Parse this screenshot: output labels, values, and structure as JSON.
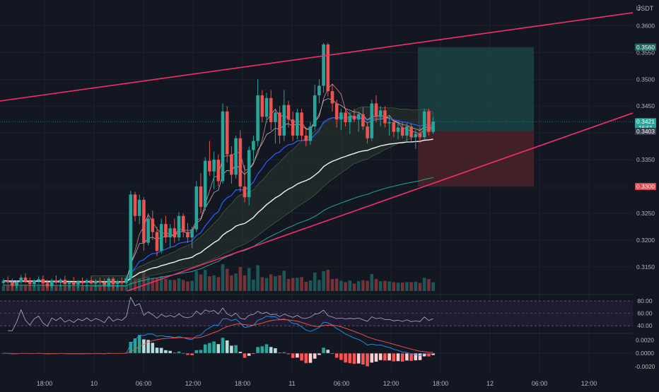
{
  "colors": {
    "background": "#131722",
    "bull": "#26a69a",
    "bear": "#ef5350",
    "trendline": "#f23067",
    "target_zone": "#1f4a48",
    "stop_zone": "#4a2228",
    "ema_fast": "#a1887f",
    "ema_mid": "#2962ff",
    "ema_slow": "#f5f5f5",
    "ema_long": "#26a69a",
    "rsi_line": "#b0b0c0",
    "macd_line": "#2196f3",
    "signal_line": "#ff5252",
    "axis_text": "#b2b5be"
  },
  "price_axis": {
    "unit_label": "USDT",
    "currency_icon": "menu-icon",
    "ticks": [
      "0.3600",
      "0.3550",
      "0.3500",
      "0.3450",
      "0.3350",
      "0.3250",
      "0.3200",
      "0.3150"
    ],
    "badges": [
      {
        "label": "0.3560",
        "kind": "target"
      },
      {
        "label": "0.3421",
        "sub": "16:51",
        "kind": "last"
      },
      {
        "label": "0.3403",
        "kind": "entry"
      },
      {
        "label": "0.3300",
        "kind": "stop"
      }
    ]
  },
  "time_axis": {
    "ticks": [
      "18:00",
      "10",
      "06:00",
      "12:00",
      "18:00",
      "11",
      "06:00",
      "12:00",
      "18:00",
      "12",
      "06:00",
      "12:00"
    ]
  },
  "rsi_panel": {
    "levels": [
      "80.00",
      "60.00",
      "40.00"
    ]
  },
  "macd_panel": {
    "levels": [
      "0.0020",
      "0.0000",
      "-0.0020"
    ]
  },
  "chart_data": [
    {
      "type": "candlestick",
      "x_unit": "time",
      "price_range": [
        0.3105,
        0.3648
      ],
      "candles_hourly_ohlc": [
        [
          0.312,
          0.3128,
          0.3115,
          0.3124
        ],
        [
          0.3124,
          0.3132,
          0.3118,
          0.3121
        ],
        [
          0.3121,
          0.3128,
          0.3112,
          0.3115
        ],
        [
          0.3115,
          0.3125,
          0.311,
          0.3122
        ],
        [
          0.3122,
          0.3135,
          0.3118,
          0.313
        ],
        [
          0.313,
          0.3138,
          0.312,
          0.3123
        ],
        [
          0.3123,
          0.313,
          0.3114,
          0.3118
        ],
        [
          0.3118,
          0.3126,
          0.3112,
          0.3124
        ],
        [
          0.3124,
          0.3132,
          0.3119,
          0.3127
        ],
        [
          0.3127,
          0.3134,
          0.3115,
          0.3119
        ],
        [
          0.3119,
          0.3126,
          0.311,
          0.3114
        ],
        [
          0.3114,
          0.3128,
          0.311,
          0.3125
        ],
        [
          0.3125,
          0.3134,
          0.3118,
          0.3121
        ],
        [
          0.3121,
          0.3129,
          0.3113,
          0.3126
        ],
        [
          0.3126,
          0.3133,
          0.3116,
          0.3118
        ],
        [
          0.3118,
          0.3125,
          0.311,
          0.3122
        ],
        [
          0.3122,
          0.3131,
          0.3115,
          0.3117
        ],
        [
          0.3117,
          0.3125,
          0.311,
          0.3123
        ],
        [
          0.3123,
          0.313,
          0.3116,
          0.312
        ],
        [
          0.312,
          0.3128,
          0.3113,
          0.3125
        ],
        [
          0.3125,
          0.3132,
          0.3118,
          0.3119
        ],
        [
          0.3119,
          0.3127,
          0.3112,
          0.3124
        ],
        [
          0.3124,
          0.313,
          0.3117,
          0.3121
        ],
        [
          0.3121,
          0.3128,
          0.3112,
          0.3116
        ],
        [
          0.3116,
          0.3131,
          0.3112,
          0.3128
        ],
        [
          0.3128,
          0.3131,
          0.311,
          0.3118
        ],
        [
          0.3118,
          0.3126,
          0.3111,
          0.3123
        ],
        [
          0.3123,
          0.313,
          0.3116,
          0.312
        ],
        [
          0.312,
          0.3133,
          0.3117,
          0.3129
        ],
        [
          0.3129,
          0.3292,
          0.3125,
          0.3285
        ],
        [
          0.3285,
          0.329,
          0.3235,
          0.3245
        ],
        [
          0.3245,
          0.3285,
          0.323,
          0.3275
        ],
        [
          0.3275,
          0.328,
          0.318,
          0.3195
        ],
        [
          0.3195,
          0.325,
          0.319,
          0.324
        ],
        [
          0.324,
          0.3255,
          0.32,
          0.3215
        ],
        [
          0.3215,
          0.3225,
          0.317,
          0.318
        ],
        [
          0.318,
          0.324,
          0.3175,
          0.323
        ],
        [
          0.323,
          0.3245,
          0.3195,
          0.3205
        ],
        [
          0.3205,
          0.323,
          0.3185,
          0.3222
        ],
        [
          0.3222,
          0.324,
          0.3195,
          0.3205
        ],
        [
          0.3205,
          0.3252,
          0.3198,
          0.3245
        ],
        [
          0.3245,
          0.325,
          0.3205,
          0.3215
        ],
        [
          0.3215,
          0.3232,
          0.3195,
          0.3205
        ],
        [
          0.3205,
          0.3225,
          0.3185,
          0.322
        ],
        [
          0.322,
          0.331,
          0.3215,
          0.33
        ],
        [
          0.33,
          0.3325,
          0.325,
          0.3262
        ],
        [
          0.3262,
          0.3355,
          0.3255,
          0.3348
        ],
        [
          0.3348,
          0.3385,
          0.332,
          0.3328
        ],
        [
          0.3328,
          0.3365,
          0.3295,
          0.335
        ],
        [
          0.335,
          0.336,
          0.33,
          0.331
        ],
        [
          0.331,
          0.3455,
          0.3305,
          0.344
        ],
        [
          0.344,
          0.345,
          0.3345,
          0.336
        ],
        [
          0.336,
          0.3375,
          0.3305,
          0.3322
        ],
        [
          0.3322,
          0.3395,
          0.3315,
          0.339
        ],
        [
          0.339,
          0.3405,
          0.329,
          0.33
        ],
        [
          0.33,
          0.334,
          0.327,
          0.328
        ],
        [
          0.328,
          0.3375,
          0.3265,
          0.3368
        ],
        [
          0.3368,
          0.3395,
          0.3348,
          0.3385
        ],
        [
          0.3385,
          0.35,
          0.3375,
          0.347
        ],
        [
          0.347,
          0.348,
          0.342,
          0.343
        ],
        [
          0.343,
          0.3475,
          0.342,
          0.3465
        ],
        [
          0.3465,
          0.348,
          0.3405,
          0.342
        ],
        [
          0.342,
          0.3445,
          0.338,
          0.3438
        ],
        [
          0.3438,
          0.345,
          0.338,
          0.3395
        ],
        [
          0.3395,
          0.348,
          0.3385,
          0.3452
        ],
        [
          0.3452,
          0.346,
          0.341,
          0.3425
        ],
        [
          0.3425,
          0.344,
          0.3385,
          0.3395
        ],
        [
          0.3395,
          0.3445,
          0.3388,
          0.3438
        ],
        [
          0.3438,
          0.3445,
          0.3385,
          0.3395
        ],
        [
          0.3395,
          0.341,
          0.3375,
          0.3385
        ],
        [
          0.3385,
          0.342,
          0.3378,
          0.3412
        ],
        [
          0.3412,
          0.349,
          0.3405,
          0.347
        ],
        [
          0.347,
          0.35,
          0.3455,
          0.3488
        ],
        [
          0.3488,
          0.3568,
          0.3475,
          0.3565
        ],
        [
          0.3565,
          0.3568,
          0.3468,
          0.3478
        ],
        [
          0.3478,
          0.349,
          0.344,
          0.3455
        ],
        [
          0.3455,
          0.3462,
          0.341,
          0.3425
        ],
        [
          0.3425,
          0.3445,
          0.3405,
          0.3438
        ],
        [
          0.3438,
          0.3445,
          0.3412,
          0.342
        ],
        [
          0.342,
          0.344,
          0.3398,
          0.3432
        ],
        [
          0.3432,
          0.3445,
          0.342,
          0.3425
        ],
        [
          0.3425,
          0.344,
          0.3402,
          0.3435
        ],
        [
          0.3435,
          0.3448,
          0.3405,
          0.3412
        ],
        [
          0.3412,
          0.342,
          0.338,
          0.339
        ],
        [
          0.339,
          0.3462,
          0.3385,
          0.3455
        ],
        [
          0.3455,
          0.347,
          0.342,
          0.343
        ],
        [
          0.343,
          0.345,
          0.3412,
          0.3442
        ],
        [
          0.3442,
          0.345,
          0.341,
          0.3418
        ],
        [
          0.3418,
          0.3432,
          0.3395,
          0.342
        ],
        [
          0.342,
          0.3425,
          0.3392,
          0.3402
        ],
        [
          0.3402,
          0.3418,
          0.3388,
          0.341
        ],
        [
          0.341,
          0.342,
          0.339,
          0.3395
        ],
        [
          0.3395,
          0.3418,
          0.3385,
          0.3412
        ],
        [
          0.3412,
          0.3418,
          0.3385,
          0.3392
        ],
        [
          0.3392,
          0.3405,
          0.337,
          0.3398
        ],
        [
          0.3398,
          0.341,
          0.3382,
          0.3392
        ],
        [
          0.3392,
          0.3445,
          0.3388,
          0.344
        ],
        [
          0.344,
          0.3445,
          0.3395,
          0.3402
        ],
        [
          0.3402,
          0.343,
          0.3398,
          0.3421
        ]
      ],
      "volume_profile": "low on day 10 overnight, spike at 06:00 on day 10, elevated through day 11"
    },
    {
      "type": "line",
      "name": "RSI",
      "ylim": [
        30,
        88
      ],
      "levels": [
        80,
        60,
        40
      ]
    },
    {
      "type": "histogram",
      "name": "MACD",
      "ylim": [
        -0.0032,
        0.0028
      ],
      "levels": [
        0.002,
        0.0,
        -0.002
      ]
    }
  ]
}
